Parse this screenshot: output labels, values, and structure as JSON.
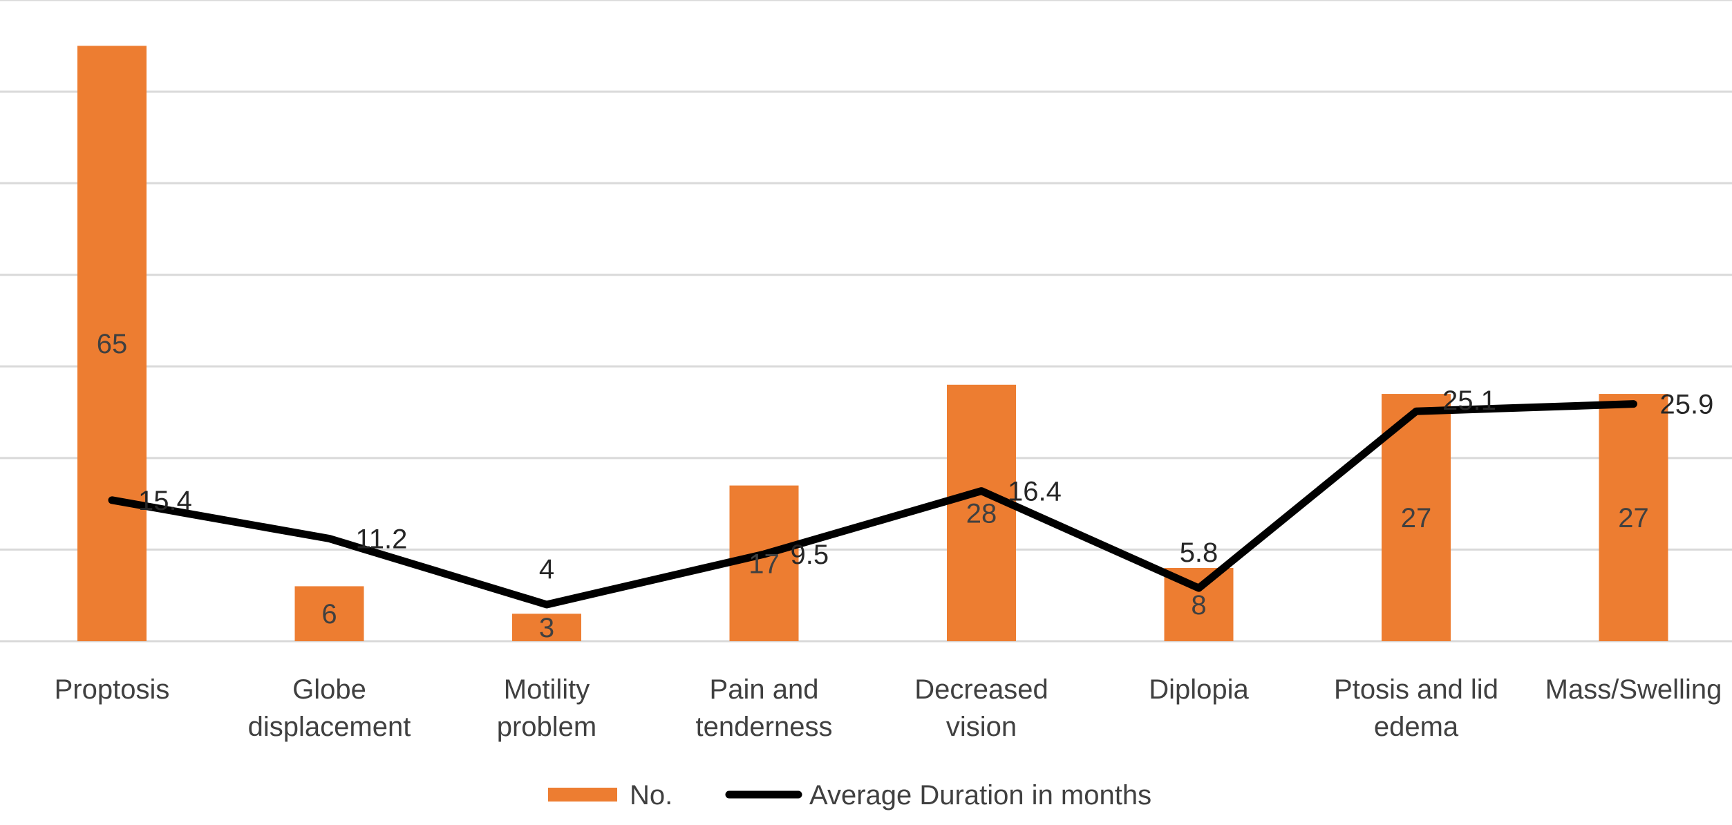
{
  "chart_data": {
    "type": "bar",
    "categories": [
      [
        "Proptosis"
      ],
      [
        "Globe",
        "displacement"
      ],
      [
        "Motility",
        "problem"
      ],
      [
        "Pain and",
        "tenderness"
      ],
      [
        "Decreased",
        "vision"
      ],
      [
        "Diplopia"
      ],
      [
        "Ptosis and lid",
        "edema"
      ],
      [
        "Mass/Swelling"
      ]
    ],
    "series": [
      {
        "name": "No.",
        "type": "bar",
        "color": "#ed7d31",
        "values": [
          65,
          6,
          3,
          17,
          28,
          8,
          27,
          27
        ],
        "labels": [
          "65",
          "6",
          "3",
          "17",
          "28",
          "8",
          "27",
          "27"
        ]
      },
      {
        "name": "Average Duration in months",
        "type": "line",
        "color": "#000000",
        "values": [
          15.4,
          11.2,
          4,
          9.5,
          16.4,
          5.8,
          25.1,
          25.9
        ],
        "labels": [
          "15.4",
          "11.2",
          "4",
          "9.5",
          "16.4",
          "5.8",
          "25.1",
          "25.9"
        ]
      }
    ],
    "ylim": [
      0,
      70
    ],
    "grid": true,
    "legend_position": "bottom"
  }
}
